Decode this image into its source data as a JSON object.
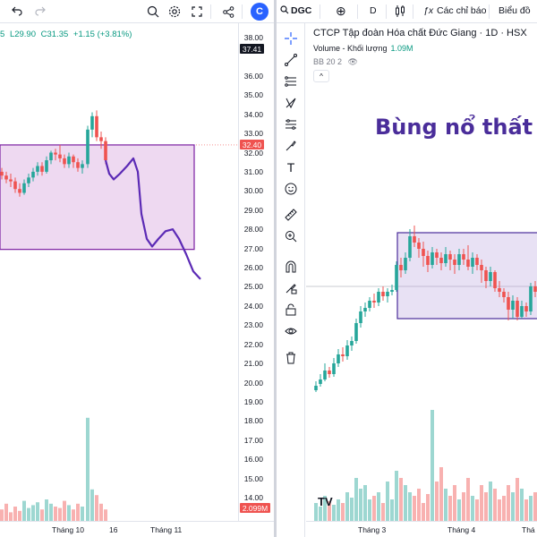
{
  "left": {
    "toolbar_icons": [
      "undo-icon",
      "redo-icon",
      "zoom-icon",
      "gear-icon",
      "fullscreen-icon",
      "share-icon"
    ],
    "ohlc": {
      "partial_open": "5",
      "low": "L29.90",
      "close": "C31.35",
      "change": "+1.15 (+3.81%)"
    },
    "price_scale": [
      "38.00",
      "36.00",
      "35.00",
      "34.00",
      "33.00",
      "32.00",
      "31.00",
      "30.00",
      "29.00",
      "28.00",
      "27.00",
      "26.00",
      "25.00",
      "24.00",
      "23.00",
      "22.00",
      "21.00",
      "20.00",
      "19.00",
      "18.00",
      "17.00",
      "16.00",
      "15.00",
      "14.00"
    ],
    "tags": {
      "top": "37.41",
      "current": "32.40",
      "volume": "2.099M"
    },
    "time_labels": [
      "Tháng 10",
      "16",
      "Tháng 11"
    ],
    "colors": {
      "up": "#26a69a",
      "down": "#ef5350",
      "box": "#7b1fa2",
      "path": "#5b2ab5"
    }
  },
  "right": {
    "toolbar": {
      "symbol": "DGC",
      "interval": "D",
      "indicators": "Các chỉ báo",
      "chart_type": "Biểu đồ"
    },
    "legend": "CTCP Tập đoàn Hóa chất Đức Giang · 1D · HSX",
    "volume_legend": {
      "label": "Volume - Khối lượng",
      "value": "1.09M"
    },
    "bb_legend": "BB 20 2",
    "headline": "Bùng nổ thất b",
    "time_labels": [
      "Tháng 3",
      "Tháng 4",
      "Thá"
    ],
    "draw_tools": [
      "crosshair-icon",
      "trendline-icon",
      "fib-icon",
      "pattern-icon",
      "projection-icon",
      "brush-icon",
      "text-icon",
      "emoji-icon",
      "ruler-icon",
      "zoom-in-icon",
      "magnet-icon",
      "lock-draw-icon",
      "unlock-icon",
      "eye-icon",
      "trash-icon"
    ],
    "logo": "TV"
  }
}
